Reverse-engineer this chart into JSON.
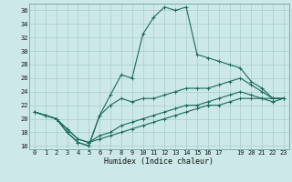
{
  "xlabel": "Humidex (Indice chaleur)",
  "bg_color": "#cce8e8",
  "grid_color": "#aacccc",
  "line_color": "#1a6b5a",
  "xlim": [
    -0.5,
    23.5
  ],
  "ylim": [
    15.5,
    37.0
  ],
  "yticks": [
    16,
    18,
    20,
    22,
    24,
    26,
    28,
    30,
    32,
    34,
    36
  ],
  "xtick_positions": [
    0,
    1,
    2,
    3,
    4,
    5,
    6,
    7,
    8,
    9,
    10,
    11,
    12,
    13,
    14,
    15,
    16,
    17,
    18,
    19,
    20,
    21,
    22,
    23
  ],
  "xtick_labels": [
    "0",
    "1",
    "2",
    "3",
    "4",
    "5",
    "6",
    "7",
    "8",
    "9",
    "10",
    "11",
    "12",
    "13",
    "14",
    "15",
    "16",
    "17",
    "",
    "19",
    "20",
    "21",
    "22",
    "23"
  ],
  "series": [
    [
      21.0,
      20.5,
      20.0,
      18.0,
      16.5,
      16.0,
      20.5,
      23.5,
      26.5,
      26.0,
      32.5,
      35.0,
      36.5,
      36.0,
      36.5,
      29.5,
      29.0,
      28.5,
      28.0,
      27.5,
      25.5,
      24.5,
      23.0,
      23.0
    ],
    [
      21.0,
      20.5,
      20.0,
      18.0,
      16.5,
      16.0,
      20.5,
      22.0,
      23.0,
      22.5,
      23.0,
      23.0,
      23.5,
      24.0,
      24.5,
      24.5,
      24.5,
      25.0,
      25.5,
      26.0,
      25.0,
      24.0,
      23.0,
      23.0
    ],
    [
      21.0,
      20.5,
      20.0,
      18.5,
      17.0,
      16.5,
      17.5,
      18.0,
      19.0,
      19.5,
      20.0,
      20.5,
      21.0,
      21.5,
      22.0,
      22.0,
      22.5,
      23.0,
      23.5,
      24.0,
      23.5,
      23.0,
      22.5,
      23.0
    ],
    [
      21.0,
      20.5,
      20.0,
      18.5,
      17.0,
      16.5,
      17.0,
      17.5,
      18.0,
      18.5,
      19.0,
      19.5,
      20.0,
      20.5,
      21.0,
      21.5,
      22.0,
      22.0,
      22.5,
      23.0,
      23.0,
      23.0,
      23.0,
      23.0
    ]
  ]
}
